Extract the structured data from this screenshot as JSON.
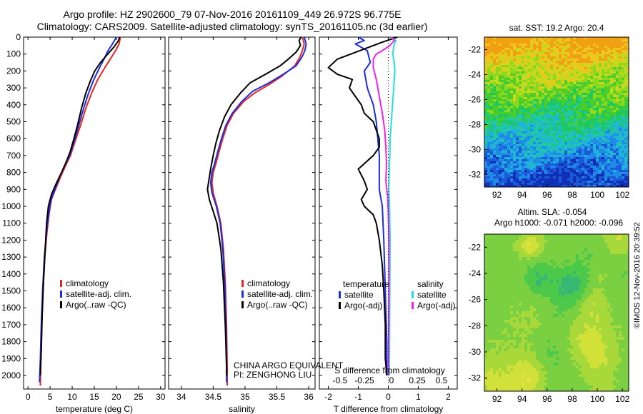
{
  "header": {
    "title_line1": "Argo profile: HZ 2902600_79 07-Nov-2016 20161109_449 26.972S 96.775E",
    "title_line2": "Climatology: CARS2009. Satellite-adjusted climatology: synTS_20161105.nc (3d earlier)"
  },
  "footer": {
    "stamp": "©IMOS 12-Nov-2016 20:39:52",
    "china_argo": "CHINA ARGO EQUIVALENT",
    "pi": "PI: ZENGHONG LIU"
  },
  "colors": {
    "climatology": "#e8261c",
    "satellite_adj": "#1c2ce0",
    "argo": "#000000",
    "temp_satellite": "#1c2ce0",
    "sal_satellite": "#22e0e0",
    "sal_argo": "#f020f0"
  },
  "chart_data": [
    {
      "type": "line",
      "id": "temperature",
      "xlabel": "temperature (deg C)",
      "ylabel": "",
      "xlim": [
        -1,
        31
      ],
      "ylim": [
        2080,
        0
      ],
      "xticks": [
        "0",
        "5",
        "10",
        "15",
        "20",
        "25",
        "30"
      ],
      "yticks": [
        "0",
        "100",
        "200",
        "300",
        "400",
        "500",
        "600",
        "700",
        "800",
        "900",
        "1000",
        "1100",
        "1200",
        "1300",
        "1400",
        "1500",
        "1600",
        "1700",
        "1800",
        "1900",
        "2000"
      ],
      "legend": [
        "climatology",
        "satellite-adj. clim.",
        "Argo(..raw -QC)"
      ],
      "series": [
        {
          "name": "climatology",
          "color": "#e8261c",
          "points": [
            [
              20.9,
              0
            ],
            [
              20.6,
              40
            ],
            [
              19.8,
              80
            ],
            [
              18.6,
              130
            ],
            [
              17.4,
              180
            ],
            [
              15.8,
              250
            ],
            [
              14.4,
              330
            ],
            [
              13.1,
              420
            ],
            [
              11.9,
              520
            ],
            [
              10.6,
              620
            ],
            [
              9.6,
              700
            ],
            [
              8.5,
              760
            ],
            [
              7.3,
              830
            ],
            [
              6.2,
              900
            ],
            [
              5.3,
              960
            ],
            [
              4.8,
              1040
            ],
            [
              4.3,
              1150
            ],
            [
              3.8,
              1300
            ],
            [
              3.4,
              1500
            ],
            [
              3.1,
              1700
            ],
            [
              2.9,
              1900
            ],
            [
              2.8,
              2060
            ]
          ]
        },
        {
          "name": "satellite-adj. clim.",
          "color": "#1c2ce0",
          "points": [
            [
              20.0,
              0
            ],
            [
              19.1,
              40
            ],
            [
              18.1,
              80
            ],
            [
              17.2,
              130
            ],
            [
              16.2,
              180
            ],
            [
              14.9,
              250
            ],
            [
              13.7,
              330
            ],
            [
              12.6,
              420
            ],
            [
              11.5,
              520
            ],
            [
              10.4,
              620
            ],
            [
              9.4,
              700
            ],
            [
              8.3,
              760
            ],
            [
              7.1,
              830
            ],
            [
              6.1,
              900
            ],
            [
              5.2,
              960
            ],
            [
              4.7,
              1040
            ],
            [
              4.2,
              1150
            ],
            [
              3.7,
              1300
            ],
            [
              3.3,
              1500
            ],
            [
              3.0,
              1700
            ],
            [
              2.8,
              1900
            ],
            [
              2.6,
              2040
            ]
          ]
        },
        {
          "name": "Argo(..raw -QC)",
          "color": "#000000",
          "points": [
            [
              20.7,
              0
            ],
            [
              20.5,
              20
            ],
            [
              19.4,
              60
            ],
            [
              17.7,
              110
            ],
            [
              16.4,
              150
            ],
            [
              15.1,
              200
            ],
            [
              14.1,
              260
            ],
            [
              13.1,
              330
            ],
            [
              12.1,
              420
            ],
            [
              11.2,
              520
            ],
            [
              10.4,
              600
            ],
            [
              9.5,
              680
            ],
            [
              8.6,
              740
            ],
            [
              7.4,
              810
            ],
            [
              6.3,
              870
            ],
            [
              5.3,
              930
            ],
            [
              4.6,
              1000
            ],
            [
              4.2,
              1100
            ],
            [
              3.9,
              1250
            ],
            [
              3.5,
              1450
            ],
            [
              3.2,
              1650
            ],
            [
              3.0,
              1850
            ],
            [
              2.8,
              2000
            ]
          ]
        }
      ]
    },
    {
      "type": "line",
      "id": "salinity",
      "xlabel": "salinity",
      "ylabel": "",
      "xlim": [
        33.8,
        36.1
      ],
      "ylim": [
        2080,
        0
      ],
      "xticks": [
        "34",
        "34.5",
        "35",
        "35.5",
        "36"
      ],
      "legend": [
        "climatology",
        "satellite-adj. clim.",
        "Argo(..raw -QC)"
      ],
      "series": [
        {
          "name": "climatology",
          "color": "#e8261c",
          "points": [
            [
              35.9,
              0
            ],
            [
              35.93,
              40
            ],
            [
              35.9,
              80
            ],
            [
              35.86,
              120
            ],
            [
              35.78,
              170
            ],
            [
              35.58,
              230
            ],
            [
              35.38,
              280
            ],
            [
              35.15,
              330
            ],
            [
              34.98,
              380
            ],
            [
              34.82,
              450
            ],
            [
              34.72,
              520
            ],
            [
              34.65,
              600
            ],
            [
              34.59,
              680
            ],
            [
              34.54,
              750
            ],
            [
              34.5,
              800
            ],
            [
              34.48,
              860
            ],
            [
              34.5,
              920
            ],
            [
              34.56,
              1000
            ],
            [
              34.62,
              1100
            ],
            [
              34.66,
              1250
            ],
            [
              34.69,
              1450
            ],
            [
              34.71,
              1700
            ],
            [
              34.72,
              1950
            ],
            [
              34.72,
              2060
            ]
          ]
        },
        {
          "name": "satellite-adj. clim.",
          "color": "#1c2ce0",
          "points": [
            [
              35.93,
              0
            ],
            [
              35.96,
              40
            ],
            [
              35.94,
              80
            ],
            [
              35.89,
              120
            ],
            [
              35.8,
              170
            ],
            [
              35.6,
              220
            ],
            [
              35.38,
              270
            ],
            [
              35.12,
              320
            ],
            [
              34.95,
              380
            ],
            [
              34.8,
              450
            ],
            [
              34.7,
              520
            ],
            [
              34.63,
              600
            ],
            [
              34.57,
              680
            ],
            [
              34.52,
              750
            ],
            [
              34.48,
              800
            ],
            [
              34.46,
              860
            ],
            [
              34.48,
              920
            ],
            [
              34.55,
              1000
            ],
            [
              34.61,
              1100
            ],
            [
              34.65,
              1250
            ],
            [
              34.68,
              1450
            ],
            [
              34.7,
              1700
            ],
            [
              34.71,
              1950
            ],
            [
              34.71,
              2040
            ]
          ]
        },
        {
          "name": "Argo(..raw -QC)",
          "color": "#000000",
          "points": [
            [
              35.88,
              0
            ],
            [
              35.85,
              20
            ],
            [
              35.87,
              50
            ],
            [
              35.8,
              90
            ],
            [
              35.68,
              130
            ],
            [
              35.55,
              170
            ],
            [
              35.32,
              220
            ],
            [
              35.08,
              270
            ],
            [
              34.93,
              330
            ],
            [
              34.78,
              400
            ],
            [
              34.68,
              470
            ],
            [
              34.6,
              550
            ],
            [
              34.54,
              630
            ],
            [
              34.5,
              700
            ],
            [
              34.46,
              780
            ],
            [
              34.43,
              850
            ],
            [
              34.41,
              900
            ],
            [
              34.44,
              960
            ],
            [
              34.5,
              1030
            ],
            [
              34.56,
              1100
            ],
            [
              34.62,
              1250
            ],
            [
              34.66,
              1450
            ],
            [
              34.69,
              1700
            ],
            [
              34.71,
              1950
            ],
            [
              34.71,
              2000
            ]
          ]
        }
      ]
    },
    {
      "type": "line",
      "id": "difference",
      "xlabel": "T difference from climatology",
      "xlabel2": "S difference from climatology",
      "xlim": [
        -2.3,
        2.3
      ],
      "ylim": [
        2080,
        0
      ],
      "xticks": [
        "-2",
        "-1",
        "0",
        "1",
        "2"
      ],
      "xticks2": [
        "-0.5",
        "-0.25",
        "0",
        "0.25",
        "0.5"
      ],
      "legend_temperature_title": "temperature",
      "legend_salinity_title": "salinity",
      "legend": [
        "satellite",
        "Argo(-adj)",
        "satellite",
        "Argo(-adj)"
      ],
      "series": [
        {
          "name": "temperature satellite",
          "color": "#1c2ce0",
          "points": [
            [
              -1.0,
              0
            ],
            [
              -0.8,
              20
            ],
            [
              -1.1,
              40
            ],
            [
              -0.7,
              80
            ],
            [
              -0.6,
              150
            ],
            [
              -0.8,
              200
            ],
            [
              -0.7,
              300
            ],
            [
              -0.5,
              400
            ],
            [
              -0.4,
              500
            ],
            [
              -0.35,
              600
            ],
            [
              -0.3,
              700
            ],
            [
              -0.3,
              800
            ],
            [
              -0.3,
              900
            ],
            [
              -0.2,
              1000
            ],
            [
              -0.15,
              1200
            ],
            [
              -0.1,
              1500
            ],
            [
              -0.05,
              1800
            ],
            [
              -0.05,
              2000
            ]
          ]
        },
        {
          "name": "temperature Argo(-adj)",
          "color": "#000000",
          "points": [
            [
              0.3,
              0
            ],
            [
              -0.2,
              30
            ],
            [
              -0.8,
              70
            ],
            [
              -1.7,
              130
            ],
            [
              -2.0,
              180
            ],
            [
              -1.7,
              220
            ],
            [
              -1.2,
              250
            ],
            [
              -1.3,
              300
            ],
            [
              -1.1,
              350
            ],
            [
              -0.9,
              400
            ],
            [
              -0.8,
              450
            ],
            [
              -0.5,
              500
            ],
            [
              -0.4,
              550
            ],
            [
              -0.3,
              600
            ],
            [
              -0.3,
              650
            ],
            [
              -0.5,
              700
            ],
            [
              -1.0,
              780
            ],
            [
              -0.8,
              850
            ],
            [
              -0.7,
              900
            ],
            [
              -0.9,
              960
            ],
            [
              -0.8,
              1000
            ],
            [
              -0.5,
              1050
            ],
            [
              -0.4,
              1100
            ],
            [
              -0.3,
              1200
            ],
            [
              -0.2,
              1350
            ],
            [
              -0.15,
              1500
            ],
            [
              -0.1,
              1700
            ],
            [
              -0.1,
              1900
            ],
            [
              -0.05,
              2000
            ]
          ]
        },
        {
          "name": "salinity satellite",
          "color": "#22e0e0",
          "points": [
            [
              0.08,
              0
            ],
            [
              0.25,
              20
            ],
            [
              0.18,
              50
            ],
            [
              0.15,
              100
            ],
            [
              0.2,
              150
            ],
            [
              0.22,
              200
            ],
            [
              0.18,
              300
            ],
            [
              0.14,
              400
            ],
            [
              0.1,
              500
            ],
            [
              0.06,
              600
            ],
            [
              0.05,
              700
            ],
            [
              0.03,
              800
            ],
            [
              0.02,
              900
            ],
            [
              0.04,
              1000
            ],
            [
              0.06,
              1200
            ],
            [
              0.05,
              1500
            ],
            [
              0.04,
              1800
            ],
            [
              0.03,
              2000
            ]
          ]
        },
        {
          "name": "salinity Argo(-adj)",
          "color": "#f020f0",
          "points": [
            [
              0.1,
              0
            ],
            [
              0.2,
              20
            ],
            [
              0.05,
              50
            ],
            [
              -0.2,
              80
            ],
            [
              -0.4,
              100
            ],
            [
              -0.5,
              130
            ],
            [
              -0.5,
              180
            ],
            [
              -0.4,
              250
            ],
            [
              -0.3,
              350
            ],
            [
              -0.2,
              450
            ],
            [
              -0.12,
              550
            ],
            [
              -0.08,
              650
            ],
            [
              -0.06,
              750
            ],
            [
              -0.08,
              850
            ],
            [
              -0.02,
              950
            ],
            [
              0.0,
              1050
            ],
            [
              0.02,
              1200
            ],
            [
              0.02,
              1500
            ],
            [
              0.0,
              2000
            ]
          ]
        }
      ]
    },
    {
      "type": "heatmap",
      "id": "sst",
      "title": "sat. SST: 19.2 Argo: 20.4",
      "xlim": [
        91,
        102.5
      ],
      "ylim": [
        -33,
        -21
      ],
      "xticks": [
        "92",
        "94",
        "96",
        "98",
        "100",
        "102"
      ],
      "yticks": [
        "-22",
        "-24",
        "-26",
        "-28",
        "-30",
        "-32"
      ]
    },
    {
      "type": "heatmap",
      "id": "sla",
      "title_line1": "Altim. SLA: -0.054",
      "title_line2": "Argo h1000: -0.071 h2000: -0.096",
      "xlim": [
        91,
        102.5
      ],
      "ylim": [
        -33,
        -21
      ],
      "xticks": [
        "92",
        "94",
        "96",
        "98",
        "100",
        "102"
      ],
      "yticks": [
        "-22",
        "-24",
        "-26",
        "-28",
        "-30",
        "-32"
      ]
    }
  ]
}
